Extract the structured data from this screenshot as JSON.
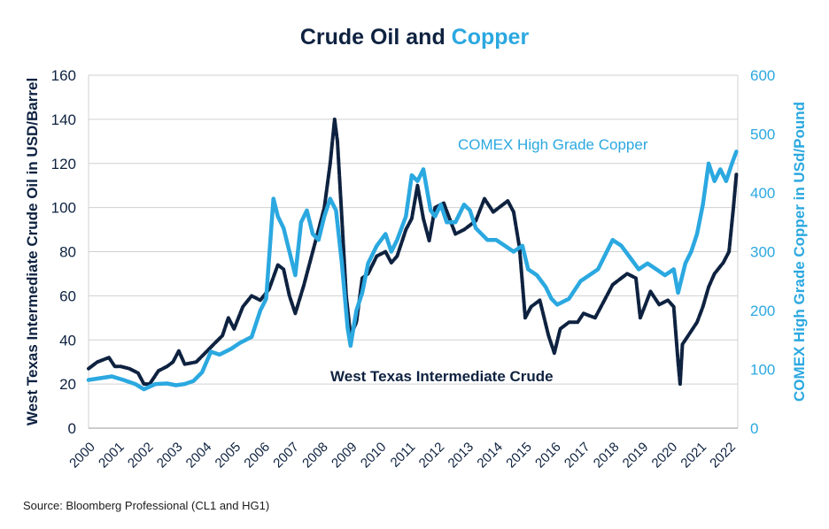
{
  "title": {
    "part1": "Crude Oil and",
    "part2": "Copper"
  },
  "source": "Source: Bloomberg Professional (CL1 and HG1)",
  "colors": {
    "oil": "#0e2240",
    "copper": "#2ba8e0",
    "grid": "#d0d0d0",
    "axis": "#0e2240"
  },
  "chart_data": {
    "type": "line",
    "title": "Crude Oil and Copper",
    "ylabel": "West Texas Intermediate Crude Oil in USD/Barrel",
    "y2label": "COMEX High Grade Copper in USd/Pound",
    "ylim": [
      0,
      160
    ],
    "y2lim": [
      0,
      600
    ],
    "yticks": [
      0,
      20,
      40,
      60,
      80,
      100,
      120,
      140,
      160
    ],
    "y2ticks": [
      0,
      100,
      200,
      300,
      400,
      500,
      600
    ],
    "xlim": [
      2000,
      2022.3
    ],
    "xticks": [
      "2000",
      "2001",
      "2002",
      "2003",
      "2004",
      "2005",
      "2006",
      "2007",
      "2008",
      "2009",
      "2010",
      "2011",
      "2012",
      "2013",
      "2014",
      "2015",
      "2016",
      "2017",
      "2018",
      "2019",
      "2020",
      "2021",
      "2022"
    ],
    "grid": "horizontal",
    "annotations": [
      {
        "text": "COMEX High Grade Copper",
        "series": "copper"
      },
      {
        "text": "West Texas Intermediate Crude",
        "series": "oil"
      }
    ],
    "series": [
      {
        "id": "oil",
        "name": "West Texas Intermediate Crude",
        "axis": "left",
        "x": [
          2000.0,
          2000.3,
          2000.7,
          2000.9,
          2001.1,
          2001.4,
          2001.7,
          2001.9,
          2002.1,
          2002.4,
          2002.7,
          2002.9,
          2003.1,
          2003.3,
          2003.7,
          2004.0,
          2004.3,
          2004.6,
          2004.8,
          2005.0,
          2005.3,
          2005.6,
          2005.9,
          2006.2,
          2006.5,
          2006.7,
          2006.9,
          2007.1,
          2007.4,
          2007.6,
          2007.9,
          2008.1,
          2008.3,
          2008.45,
          2008.55,
          2008.7,
          2008.85,
          2009.0,
          2009.2,
          2009.4,
          2009.6,
          2009.9,
          2010.2,
          2010.4,
          2010.6,
          2010.9,
          2011.1,
          2011.3,
          2011.5,
          2011.7,
          2011.9,
          2012.2,
          2012.4,
          2012.6,
          2012.9,
          2013.1,
          2013.3,
          2013.6,
          2013.9,
          2014.1,
          2014.4,
          2014.6,
          2014.8,
          2015.0,
          2015.2,
          2015.5,
          2015.8,
          2016.0,
          2016.2,
          2016.5,
          2016.8,
          2017.0,
          2017.4,
          2017.8,
          2018.0,
          2018.3,
          2018.5,
          2018.8,
          2018.95,
          2019.1,
          2019.3,
          2019.6,
          2019.9,
          2020.1,
          2020.25,
          2020.32,
          2020.4,
          2020.6,
          2020.9,
          2021.1,
          2021.3,
          2021.5,
          2021.8,
          2022.0,
          2022.15,
          2022.25
        ],
        "y": [
          27,
          30,
          32,
          28,
          28,
          27,
          25,
          20,
          20,
          26,
          28,
          30,
          35,
          29,
          30,
          34,
          38,
          42,
          50,
          45,
          55,
          60,
          58,
          63,
          74,
          72,
          60,
          52,
          65,
          75,
          90,
          100,
          120,
          140,
          130,
          95,
          60,
          42,
          48,
          68,
          70,
          78,
          80,
          75,
          78,
          90,
          95,
          110,
          95,
          85,
          100,
          102,
          95,
          88,
          90,
          92,
          94,
          104,
          98,
          100,
          103,
          98,
          82,
          50,
          55,
          58,
          42,
          34,
          45,
          48,
          48,
          52,
          50,
          60,
          65,
          68,
          70,
          68,
          50,
          55,
          62,
          56,
          58,
          55,
          30,
          20,
          38,
          42,
          48,
          55,
          64,
          70,
          75,
          80,
          100,
          115
        ]
      },
      {
        "id": "copper",
        "name": "COMEX High Grade Copper",
        "axis": "right",
        "x": [
          2000.0,
          2000.4,
          2000.8,
          2001.2,
          2001.6,
          2001.9,
          2002.3,
          2002.7,
          2003.0,
          2003.3,
          2003.6,
          2003.9,
          2004.2,
          2004.5,
          2004.9,
          2005.2,
          2005.6,
          2005.9,
          2006.1,
          2006.35,
          2006.5,
          2006.7,
          2006.9,
          2007.1,
          2007.3,
          2007.5,
          2007.7,
          2007.9,
          2008.1,
          2008.3,
          2008.5,
          2008.7,
          2008.9,
          2009.0,
          2009.2,
          2009.4,
          2009.6,
          2009.9,
          2010.2,
          2010.4,
          2010.6,
          2010.9,
          2011.1,
          2011.3,
          2011.5,
          2011.75,
          2011.9,
          2012.1,
          2012.3,
          2012.6,
          2012.9,
          2013.1,
          2013.3,
          2013.7,
          2014.0,
          2014.3,
          2014.6,
          2014.9,
          2015.1,
          2015.4,
          2015.7,
          2015.9,
          2016.1,
          2016.5,
          2016.9,
          2017.2,
          2017.5,
          2017.8,
          2018.0,
          2018.3,
          2018.6,
          2018.9,
          2019.2,
          2019.5,
          2019.8,
          2020.1,
          2020.25,
          2020.5,
          2020.7,
          2020.9,
          2021.1,
          2021.3,
          2021.5,
          2021.7,
          2021.9,
          2022.1,
          2022.25
        ],
        "y": [
          82,
          85,
          88,
          82,
          75,
          66,
          75,
          76,
          73,
          75,
          80,
          95,
          130,
          125,
          135,
          145,
          155,
          200,
          220,
          390,
          360,
          340,
          300,
          260,
          350,
          370,
          330,
          320,
          360,
          390,
          370,
          280,
          170,
          140,
          200,
          230,
          280,
          310,
          330,
          300,
          320,
          360,
          430,
          420,
          440,
          370,
          360,
          380,
          350,
          350,
          380,
          370,
          340,
          320,
          320,
          310,
          300,
          310,
          270,
          260,
          240,
          220,
          210,
          220,
          250,
          260,
          270,
          300,
          320,
          310,
          290,
          270,
          280,
          270,
          260,
          270,
          230,
          280,
          300,
          330,
          380,
          450,
          420,
          440,
          420,
          450,
          470
        ]
      }
    ]
  }
}
